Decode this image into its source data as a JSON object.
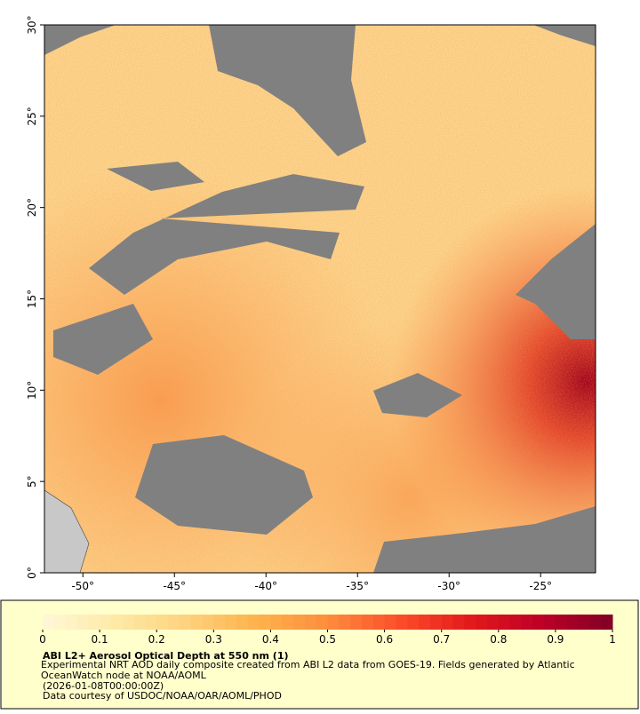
{
  "map": {
    "lon_range": [
      -52.1,
      -22
    ],
    "lat_range": [
      0,
      30
    ],
    "lon_ticks": [
      {
        "value": -50,
        "label": "-50°"
      },
      {
        "value": -45,
        "label": "-45°"
      },
      {
        "value": -40,
        "label": "-40°"
      },
      {
        "value": -35,
        "label": "-35°"
      },
      {
        "value": -30,
        "label": "-30°"
      },
      {
        "value": -25,
        "label": "-25°"
      }
    ],
    "lat_ticks": [
      {
        "value": 0,
        "label": "0°"
      },
      {
        "value": 5,
        "label": "5°"
      },
      {
        "value": 10,
        "label": "10°"
      },
      {
        "value": 15,
        "label": "15°"
      },
      {
        "value": 20,
        "label": "20°"
      },
      {
        "value": 25,
        "label": "25°"
      },
      {
        "value": 30,
        "label": "30°"
      }
    ]
  },
  "colorbar": {
    "range": [
      0,
      1
    ],
    "ticks": [
      0,
      0.1,
      0.2,
      0.3,
      0.4,
      0.5,
      0.6,
      0.7,
      0.8,
      0.9,
      1
    ],
    "colormap": [
      "#fff8d8",
      "#feeaa8",
      "#fed27e",
      "#feb24c",
      "#fd8d3c",
      "#fc4e2a",
      "#e31a1c",
      "#bd0026",
      "#800026"
    ]
  },
  "caption": {
    "title": "ABI L2+ Aerosol Optical Depth at 550 nm (1)",
    "description": "Experimental NRT AOD daily composite created from ABI L2 data from GOES-19. Fields generated by Atlantic OceanWatch node at NOAA/AOML",
    "time": "(2026-01-08T00:00:00Z)",
    "credit": "Data courtesy of USDOC/NOAA/OAR/AOML/PHOD"
  }
}
